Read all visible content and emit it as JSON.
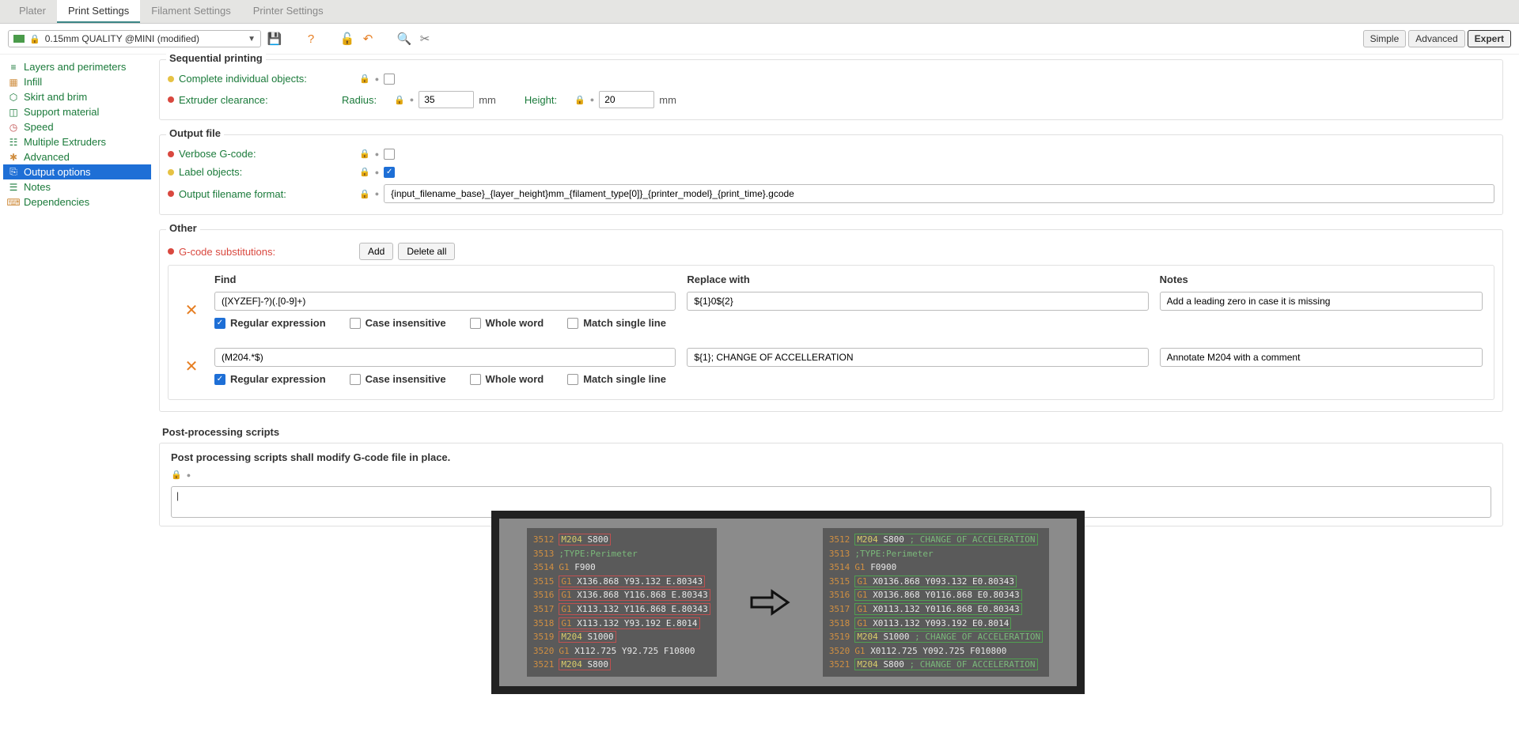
{
  "tabs": {
    "plater": "Plater",
    "print": "Print Settings",
    "filament": "Filament Settings",
    "printer": "Printer Settings"
  },
  "preset": "0.15mm QUALITY @MINI (modified)",
  "modes": {
    "simple": "Simple",
    "advanced": "Advanced",
    "expert": "Expert"
  },
  "sidebar": [
    {
      "icon": "≡",
      "label": "Layers and perimeters",
      "cls": "green"
    },
    {
      "icon": "▦",
      "label": "Infill",
      "cls": "green",
      "iconColor": "#d08f42"
    },
    {
      "icon": "⬡",
      "label": "Skirt and brim",
      "cls": "green"
    },
    {
      "icon": "◫",
      "label": "Support material",
      "cls": "green"
    },
    {
      "icon": "◷",
      "label": "Speed",
      "cls": "green",
      "iconColor": "#c05050"
    },
    {
      "icon": "☷",
      "label": "Multiple Extruders",
      "cls": "green"
    },
    {
      "icon": "✱",
      "label": "Advanced",
      "cls": "green",
      "iconColor": "#d08f42"
    },
    {
      "icon": "⎘",
      "label": "Output options",
      "cls": "selected"
    },
    {
      "icon": "☰",
      "label": "Notes",
      "cls": "green"
    },
    {
      "icon": "⌨",
      "label": "Dependencies",
      "cls": "green",
      "iconColor": "#d08f42"
    }
  ],
  "seq": {
    "title": "Sequential printing",
    "complete": "Complete individual objects:",
    "clearance": "Extruder clearance:",
    "radius": "Radius:",
    "radius_val": "35",
    "height": "Height:",
    "height_val": "20",
    "mm": "mm"
  },
  "outfile": {
    "title": "Output file",
    "verbose": "Verbose G-code:",
    "label_obj": "Label objects:",
    "fname": "Output filename format:",
    "fname_val": "{input_filename_base}_{layer_height}mm_{filament_type[0]}_{printer_model}_{print_time}.gcode"
  },
  "other": {
    "title": "Other",
    "gcs": "G-code substitutions:",
    "add": "Add",
    "delall": "Delete all",
    "h_find": "Find",
    "h_replace": "Replace with",
    "h_notes": "Notes",
    "o_re": "Regular expression",
    "o_ci": "Case insensitive",
    "o_ww": "Whole word",
    "o_ms": "Match single line",
    "rows": [
      {
        "find": "([XYZEF]-?)(.[0-9]+)",
        "replace": "${1}0${2}",
        "note": "Add a leading zero in case it is missing"
      },
      {
        "find": "(M204.*$)",
        "replace": "${1}; CHANGE OF ACCELLERATION",
        "note": "Annotate M204 with a comment"
      }
    ]
  },
  "pp": {
    "title": "Post-processing scripts",
    "desc": "Post processing scripts shall modify G-code file in place."
  },
  "gcode_left": [
    {
      "ln": "3512",
      "cmd": "M204",
      "args": "S800",
      "hl": "red"
    },
    {
      "ln": "3513",
      "cmt": ";TYPE:Perimeter"
    },
    {
      "ln": "3514",
      "cmd": "G1",
      "args": "F900"
    },
    {
      "ln": "3515",
      "cmd": "G1",
      "args": "X136.868 Y93.132 E.80343",
      "hl": "red"
    },
    {
      "ln": "3516",
      "cmd": "G1",
      "args": "X136.868 Y116.868 E.80343",
      "hl": "red"
    },
    {
      "ln": "3517",
      "cmd": "G1",
      "args": "X113.132 Y116.868 E.80343",
      "hl": "red"
    },
    {
      "ln": "3518",
      "cmd": "G1",
      "args": "X113.132 Y93.192 E.8014",
      "hl": "red"
    },
    {
      "ln": "3519",
      "cmd": "M204",
      "args": "S1000",
      "hl": "red"
    },
    {
      "ln": "3520",
      "cmd": "G1",
      "args": "X112.725 Y92.725 F10800"
    },
    {
      "ln": "3521",
      "cmd": "M204",
      "args": "S800",
      "hl": "red"
    }
  ],
  "gcode_right": [
    {
      "ln": "3512",
      "cmd": "M204",
      "args": "S800",
      "cmt": " ; CHANGE OF ACCELERATION",
      "hl": "green"
    },
    {
      "ln": "3513",
      "cmt": ";TYPE:Perimeter"
    },
    {
      "ln": "3514",
      "cmd": "G1",
      "args": "F0900"
    },
    {
      "ln": "3515",
      "cmd": "G1",
      "args": "X0136.868 Y093.132 E0.80343",
      "hl": "green"
    },
    {
      "ln": "3516",
      "cmd": "G1",
      "args": "X0136.868 Y0116.868 E0.80343",
      "hl": "green"
    },
    {
      "ln": "3517",
      "cmd": "G1",
      "args": "X0113.132 Y0116.868 E0.80343",
      "hl": "green"
    },
    {
      "ln": "3518",
      "cmd": "G1",
      "args": "X0113.132 Y093.192 E0.8014",
      "hl": "green"
    },
    {
      "ln": "3519",
      "cmd": "M204",
      "args": "S1000",
      "cmt": " ; CHANGE OF ACCELERATION",
      "hl": "green"
    },
    {
      "ln": "3520",
      "cmd": "G1",
      "args": "X0112.725 Y092.725 F010800"
    },
    {
      "ln": "3521",
      "cmd": "M204",
      "args": "S800",
      "cmt": " ; CHANGE OF ACCELERATION",
      "hl": "green"
    }
  ]
}
